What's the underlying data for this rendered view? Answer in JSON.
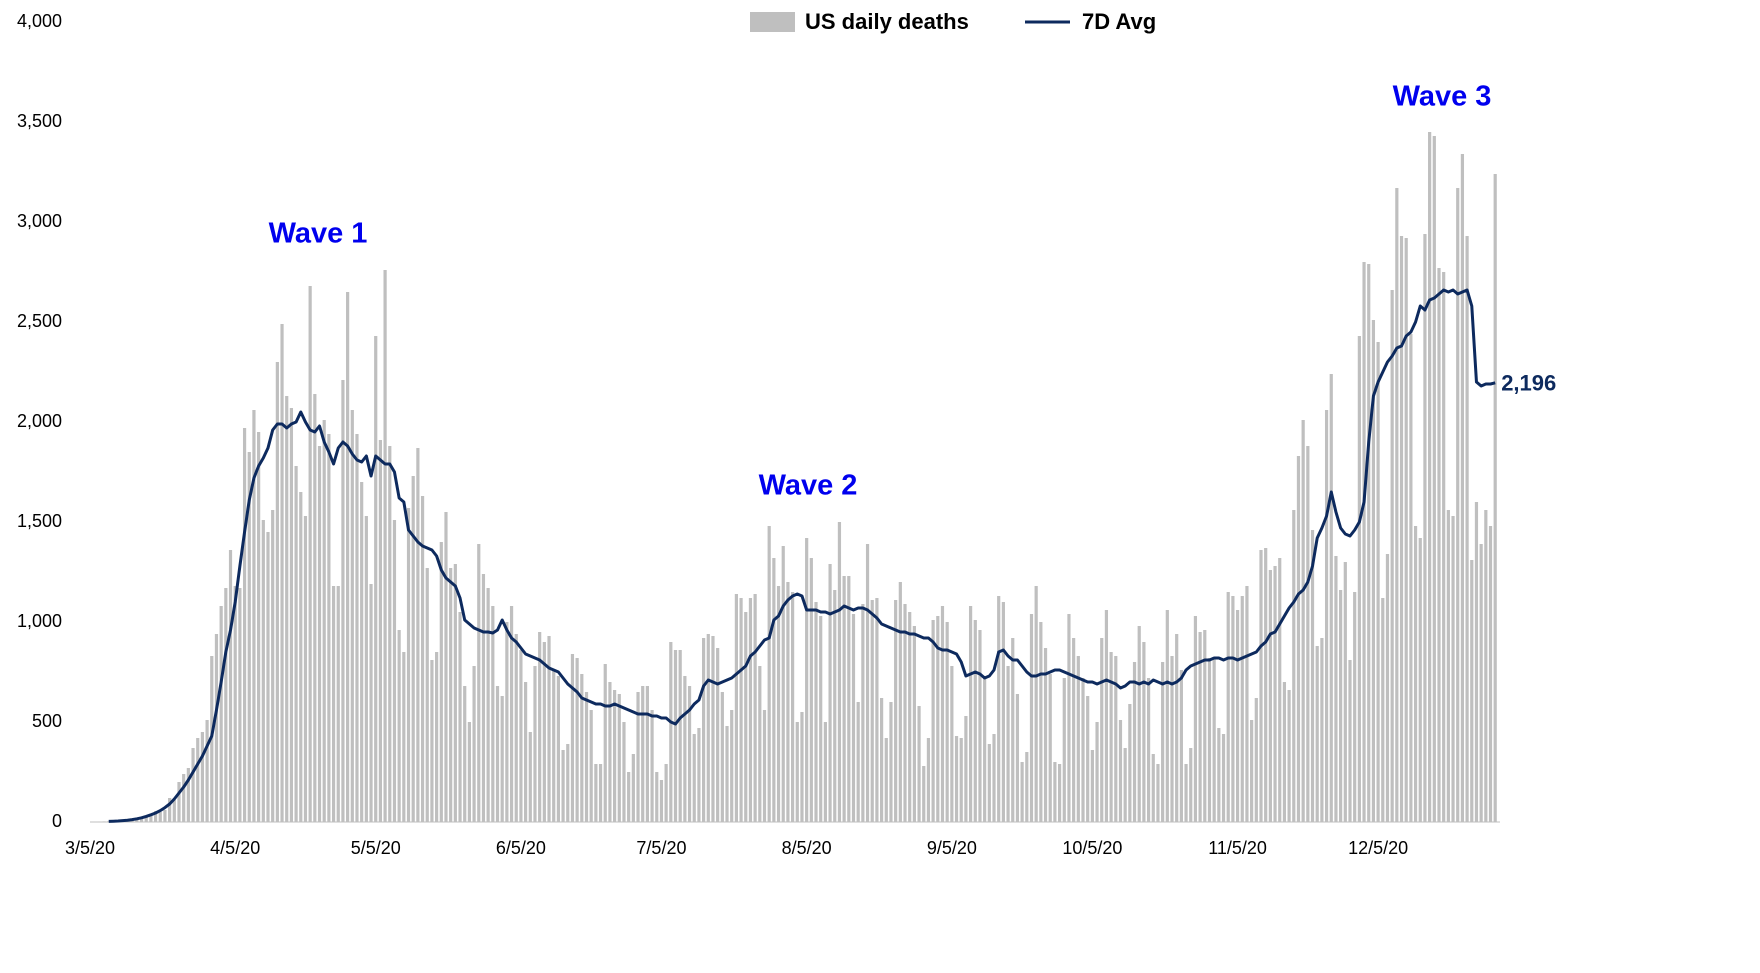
{
  "chart_data": {
    "type": "bar_line",
    "categories": [
      "3/5/20",
      null,
      null,
      null,
      null,
      null,
      null,
      null,
      null,
      null,
      null,
      null,
      null,
      null,
      null,
      null,
      null,
      null,
      null,
      null,
      null,
      null,
      null,
      null,
      null,
      null,
      null,
      null,
      null,
      null,
      null,
      "4/5/20",
      null,
      null,
      null,
      null,
      null,
      null,
      null,
      null,
      null,
      null,
      null,
      null,
      null,
      null,
      null,
      null,
      null,
      null,
      null,
      null,
      null,
      null,
      null,
      null,
      null,
      null,
      null,
      null,
      null,
      "5/5/20",
      null,
      null,
      null,
      null,
      null,
      null,
      null,
      null,
      null,
      null,
      null,
      null,
      null,
      null,
      null,
      null,
      null,
      null,
      null,
      null,
      null,
      null,
      null,
      null,
      null,
      null,
      null,
      null,
      null,
      null,
      "6/5/20",
      null,
      null,
      null,
      null,
      null,
      null,
      null,
      null,
      null,
      null,
      null,
      null,
      null,
      null,
      null,
      null,
      null,
      null,
      null,
      null,
      null,
      null,
      null,
      null,
      null,
      null,
      null,
      null,
      null,
      "7/5/20",
      null,
      null,
      null,
      null,
      null,
      null,
      null,
      null,
      null,
      null,
      null,
      null,
      null,
      null,
      null,
      null,
      null,
      null,
      null,
      null,
      null,
      null,
      null,
      null,
      null,
      null,
      null,
      null,
      null,
      null,
      "8/5/20",
      null,
      null,
      null,
      null,
      null,
      null,
      null,
      null,
      null,
      null,
      null,
      null,
      null,
      null,
      null,
      null,
      null,
      null,
      null,
      null,
      null,
      null,
      null,
      null,
      null,
      null,
      null,
      null,
      null,
      null,
      "9/5/20",
      null,
      null,
      null,
      null,
      null,
      null,
      null,
      null,
      null,
      null,
      null,
      null,
      null,
      null,
      null,
      null,
      null,
      null,
      null,
      null,
      null,
      null,
      null,
      null,
      null,
      null,
      null,
      null,
      null,
      "10/5/20",
      null,
      null,
      null,
      null,
      null,
      null,
      null,
      null,
      null,
      null,
      null,
      null,
      null,
      null,
      null,
      null,
      null,
      null,
      null,
      null,
      null,
      null,
      null,
      null,
      null,
      null,
      null,
      null,
      null,
      null,
      "11/5/20",
      null,
      null,
      null,
      null,
      null,
      null,
      null,
      null,
      null,
      null,
      null,
      null,
      null,
      null,
      null,
      null,
      null,
      null,
      null,
      null,
      null,
      null,
      null,
      null,
      null,
      null,
      null,
      null,
      null,
      "12/5/20",
      null,
      null,
      null,
      null,
      null,
      null,
      null,
      null,
      null,
      null,
      null,
      null,
      null,
      null,
      null,
      null,
      null,
      null,
      null,
      null,
      null,
      null,
      null,
      null,
      null
    ],
    "series": [
      {
        "name": "US daily deaths",
        "type": "bar",
        "color": "#bfbfbf",
        "values": [
          0,
          1,
          2,
          3,
          4,
          6,
          8,
          10,
          12,
          12,
          15,
          20,
          25,
          40,
          55,
          50,
          60,
          120,
          110,
          200,
          240,
          270,
          370,
          420,
          450,
          510,
          830,
          940,
          1080,
          1170,
          1360,
          1180,
          1170,
          1970,
          1850,
          2060,
          1950,
          1510,
          1450,
          1560,
          2300,
          2490,
          2130,
          2070,
          1780,
          1650,
          1530,
          2680,
          2140,
          1880,
          2010,
          1940,
          1180,
          1180,
          2210,
          2650,
          2060,
          1940,
          1700,
          1530,
          1190,
          2430,
          1910,
          2760,
          1880,
          1510,
          960,
          850,
          1570,
          1730,
          1870,
          1630,
          1270,
          810,
          850,
          1400,
          1550,
          1270,
          1290,
          1050,
          680,
          500,
          780,
          1390,
          1240,
          1170,
          1080,
          680,
          630,
          1000,
          1080,
          940,
          860,
          700,
          450,
          780,
          950,
          900,
          930,
          760,
          730,
          360,
          390,
          840,
          820,
          740,
          650,
          560,
          290,
          290,
          790,
          700,
          660,
          640,
          500,
          250,
          340,
          650,
          680,
          680,
          560,
          250,
          210,
          290,
          900,
          860,
          860,
          730,
          680,
          440,
          470,
          920,
          940,
          930,
          870,
          650,
          480,
          560,
          1140,
          1120,
          1050,
          1120,
          1140,
          780,
          560,
          1480,
          1320,
          1180,
          1380,
          1200,
          1150,
          500,
          550,
          1420,
          1320,
          1100,
          1030,
          500,
          1290,
          1160,
          1500,
          1230,
          1230,
          1040,
          600,
          1090,
          1390,
          1110,
          1120,
          620,
          420,
          600,
          1110,
          1200,
          1090,
          1050,
          980,
          580,
          280,
          420,
          1010,
          1030,
          1080,
          1000,
          780,
          430,
          420,
          530,
          1080,
          1010,
          960,
          720,
          390,
          440,
          1130,
          1100,
          780,
          920,
          640,
          300,
          350,
          1040,
          1180,
          1000,
          870,
          740,
          300,
          290,
          720,
          1040,
          920,
          830,
          720,
          630,
          360,
          500,
          920,
          1060,
          850,
          830,
          510,
          370,
          590,
          800,
          980,
          900,
          720,
          340,
          290,
          800,
          1060,
          830,
          940,
          760,
          290,
          370,
          1030,
          950,
          960,
          820,
          820,
          470,
          440,
          1150,
          1130,
          1060,
          1130,
          1180,
          510,
          620,
          1360,
          1370,
          1260,
          1280,
          1320,
          700,
          660,
          1560,
          1830,
          2010,
          1880,
          1460,
          880,
          920,
          2060,
          2240,
          1330,
          1160,
          1300,
          810,
          1150,
          2430,
          2800,
          2790,
          2510,
          2400,
          1120,
          1340,
          2660,
          3170,
          2930,
          2920,
          2440,
          1480,
          1420,
          2940,
          3450,
          3430,
          2770,
          2750,
          1560,
          1530,
          3170,
          3340,
          2930,
          1310,
          1600,
          1390,
          1560,
          1480,
          3240
        ]
      },
      {
        "name": "7D Avg",
        "type": "line",
        "color": "#0d2a5e",
        "end_label": "2,196",
        "values": [
          null,
          null,
          null,
          null,
          3,
          4,
          5,
          7,
          9,
          12,
          16,
          21,
          28,
          36,
          45,
          57,
          72,
          90,
          115,
          145,
          175,
          210,
          250,
          290,
          330,
          380,
          430,
          560,
          700,
          850,
          960,
          1100,
          1280,
          1450,
          1610,
          1720,
          1780,
          1820,
          1870,
          1960,
          1990,
          1990,
          1970,
          1990,
          2000,
          2050,
          2000,
          1960,
          1950,
          1980,
          1900,
          1850,
          1790,
          1870,
          1900,
          1880,
          1840,
          1810,
          1800,
          1830,
          1730,
          1830,
          1810,
          1790,
          1790,
          1750,
          1620,
          1600,
          1460,
          1430,
          1400,
          1380,
          1370,
          1360,
          1330,
          1260,
          1220,
          1200,
          1180,
          1120,
          1010,
          990,
          970,
          960,
          950,
          950,
          945,
          960,
          1010,
          960,
          920,
          900,
          870,
          840,
          830,
          820,
          810,
          790,
          770,
          760,
          750,
          720,
          690,
          670,
          650,
          620,
          610,
          600,
          590,
          590,
          580,
          580,
          590,
          580,
          570,
          560,
          550,
          540,
          540,
          540,
          530,
          530,
          520,
          520,
          500,
          490,
          520,
          540,
          560,
          590,
          610,
          680,
          710,
          700,
          690,
          700,
          710,
          720,
          740,
          760,
          780,
          830,
          850,
          880,
          910,
          920,
          1010,
          1030,
          1080,
          1110,
          1130,
          1140,
          1130,
          1060,
          1060,
          1060,
          1050,
          1050,
          1040,
          1050,
          1060,
          1080,
          1070,
          1060,
          1070,
          1070,
          1060,
          1040,
          1020,
          990,
          980,
          970,
          960,
          950,
          950,
          940,
          940,
          930,
          920,
          920,
          900,
          870,
          860,
          860,
          850,
          840,
          800,
          730,
          740,
          750,
          740,
          720,
          730,
          760,
          850,
          860,
          830,
          810,
          810,
          780,
          750,
          730,
          730,
          740,
          740,
          750,
          760,
          760,
          750,
          740,
          730,
          720,
          710,
          700,
          700,
          690,
          700,
          710,
          700,
          690,
          670,
          680,
          700,
          700,
          690,
          700,
          690,
          710,
          700,
          690,
          700,
          690,
          700,
          720,
          760,
          780,
          790,
          800,
          810,
          810,
          820,
          820,
          810,
          820,
          820,
          810,
          820,
          830,
          840,
          850,
          880,
          900,
          940,
          950,
          990,
          1030,
          1070,
          1100,
          1140,
          1160,
          1200,
          1280,
          1420,
          1470,
          1530,
          1650,
          1550,
          1470,
          1440,
          1430,
          1460,
          1500,
          1600,
          1900,
          2130,
          2200,
          2250,
          2300,
          2330,
          2370,
          2380,
          2430,
          2450,
          2500,
          2580,
          2560,
          2610,
          2620,
          2640,
          2660,
          2650,
          2660,
          2640,
          2650,
          2660,
          2580,
          2200,
          2180,
          2190,
          2190,
          2196
        ]
      }
    ],
    "annotations": [
      "Wave 1",
      "Wave 2",
      "Wave 3"
    ],
    "ylim": [
      0,
      4000
    ],
    "yticks": [
      0,
      500,
      {
        "value": 1000,
        "label": "1,000"
      },
      {
        "value": 1500,
        "label": "1,500"
      },
      {
        "value": 2000,
        "label": "2,000"
      },
      {
        "value": 2500,
        "label": "2,500"
      },
      {
        "value": 3000,
        "label": "3,000"
      },
      {
        "value": 3500,
        "label": "3,500"
      },
      {
        "value": 4000,
        "label": "4,000"
      }
    ],
    "grid": false,
    "legend": "top"
  }
}
